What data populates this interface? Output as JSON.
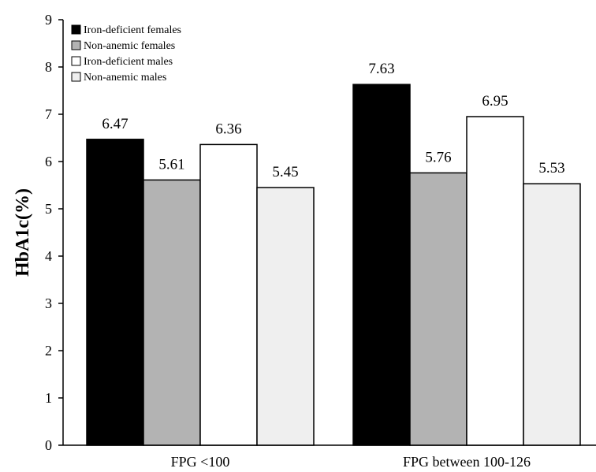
{
  "chart_data": {
    "type": "bar",
    "title": "",
    "xlabel": "",
    "ylabel": "HbA1c(%)",
    "ylim": [
      0,
      9
    ],
    "yticks": [
      "0",
      "1",
      "2",
      "3",
      "4",
      "5",
      "6",
      "7",
      "8",
      "9"
    ],
    "grid": false,
    "legend_position": "top-left",
    "categories": [
      "FPG <100",
      "FPG between 100-126"
    ],
    "series": [
      {
        "name": "Iron-deficient females",
        "values": [
          6.47,
          7.63
        ],
        "labels": [
          "6.47",
          "7.63"
        ],
        "color": "#000000"
      },
      {
        "name": "Non-anemic females",
        "values": [
          5.61,
          5.76
        ],
        "labels": [
          "5.61",
          "5.76"
        ],
        "color": "#b3b3b3"
      },
      {
        "name": "Iron-deficient males",
        "values": [
          6.36,
          6.95
        ],
        "labels": [
          "6.36",
          "6.95"
        ],
        "color": "#ffffff"
      },
      {
        "name": "Non-anemic males",
        "values": [
          5.45,
          5.53
        ],
        "labels": [
          "5.45",
          "5.53"
        ],
        "color": "#efefef"
      }
    ]
  }
}
